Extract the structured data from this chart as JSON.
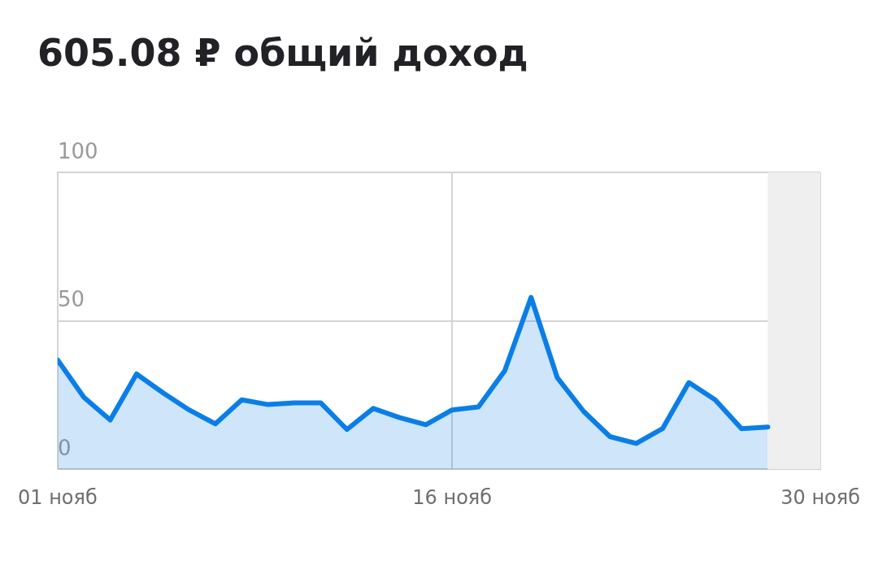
{
  "chart_data": {
    "type": "area",
    "title": "605.08 ₽ общий доход",
    "x": [
      "--11-01",
      "--11-02",
      "--11-03",
      "--11-04",
      "--11-05",
      "--11-06",
      "--11-07",
      "--11-08",
      "--11-09",
      "--11-10",
      "--11-11",
      "--11-12",
      "--11-13",
      "--11-14",
      "--11-15",
      "--11-16",
      "--11-17",
      "--11-18",
      "--11-19",
      "--11-20",
      "--11-21",
      "--11-22",
      "--11-23",
      "--11-24",
      "--11-25",
      "--11-26",
      "--11-27",
      "--11-28"
    ],
    "series": [
      {
        "color": "#0a7ee8",
        "values": [
          36.8,
          24.2,
          16.6,
          32.1,
          25.8,
          20,
          15.3,
          23.4,
          21.8,
          22.4,
          22.4,
          13.4,
          20.5,
          17.4,
          15,
          20,
          21,
          33.2,
          57.9,
          30.8,
          19.5,
          11,
          8.7,
          13.7,
          29.2,
          23.4,
          13.7,
          14.2
        ]
      }
    ],
    "xlim": [
      "--11-01",
      "--11-30"
    ],
    "xticks": [
      {
        "value": "--11-01",
        "label": "01 нояб"
      },
      {
        "value": "--11-16",
        "label": "16 нояб"
      },
      {
        "value": "--11-30",
        "label": "30 нояб"
      }
    ],
    "ylim": [
      0,
      100
    ],
    "yticks": [
      0,
      50,
      100
    ],
    "bands": [
      {
        "axis": "x",
        "from": "--11-28",
        "to": "--11-30",
        "color": "#efefef"
      }
    ],
    "grid": true,
    "legend": false,
    "marker": "none",
    "line_style": "solid"
  }
}
